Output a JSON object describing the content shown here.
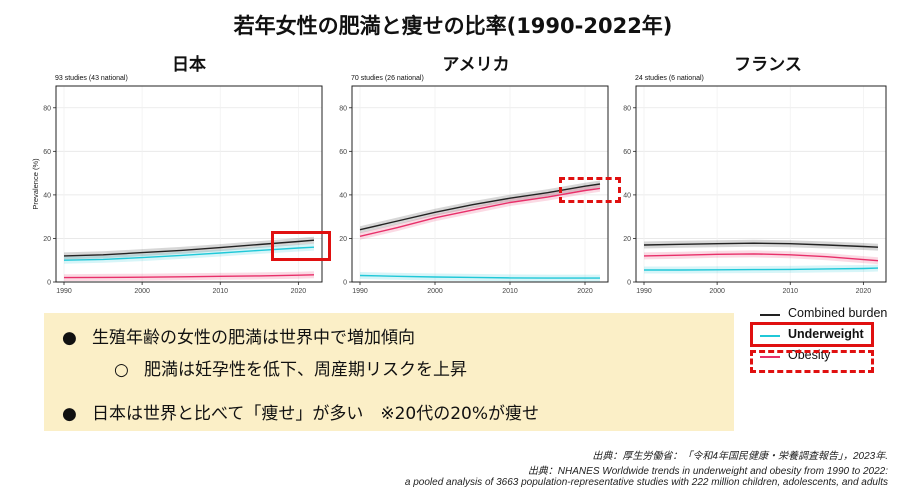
{
  "title": "若年女性の肥満と痩せの比率(1990-2022年)",
  "chart_data": [
    {
      "type": "line",
      "panel_title": "日本",
      "note": "93 studies (43 national)",
      "ylabel": "Prevalence (%)",
      "xlim": [
        1990,
        2022
      ],
      "ylim": [
        0,
        90
      ],
      "xticks": [
        "1990",
        "2000",
        "2010",
        "2020"
      ],
      "yticks": [
        "0",
        "20",
        "40",
        "60",
        "80"
      ],
      "x": [
        1990,
        1995,
        2000,
        2005,
        2010,
        2015,
        2020,
        2022
      ],
      "series": [
        {
          "name": "Combined burden",
          "values": [
            12.0,
            12.5,
            13.5,
            14.5,
            15.8,
            17.2,
            18.6,
            19.2
          ]
        },
        {
          "name": "Underweight",
          "values": [
            10.0,
            10.4,
            11.2,
            12.2,
            13.3,
            14.5,
            15.6,
            16.0
          ]
        },
        {
          "name": "Obesity",
          "values": [
            2.0,
            2.1,
            2.2,
            2.4,
            2.6,
            2.8,
            3.1,
            3.3
          ]
        }
      ]
    },
    {
      "type": "line",
      "panel_title": "アメリカ",
      "note": "70 studies (26 national)",
      "xlim": [
        1990,
        2022
      ],
      "ylim": [
        0,
        90
      ],
      "xticks": [
        "1990",
        "2000",
        "2010",
        "2020"
      ],
      "yticks": [
        "0",
        "20",
        "40",
        "60",
        "80"
      ],
      "x": [
        1990,
        1995,
        2000,
        2005,
        2010,
        2015,
        2020,
        2022
      ],
      "series": [
        {
          "name": "Combined burden",
          "values": [
            24.0,
            28.0,
            32.0,
            35.5,
            38.5,
            41.0,
            44.0,
            45.0
          ]
        },
        {
          "name": "Underweight",
          "values": [
            3.0,
            2.6,
            2.3,
            2.1,
            1.9,
            1.8,
            1.8,
            1.8
          ]
        },
        {
          "name": "Obesity",
          "values": [
            21.0,
            25.0,
            29.5,
            33.0,
            36.5,
            39.0,
            42.0,
            43.0
          ]
        }
      ]
    },
    {
      "type": "line",
      "panel_title": "フランス",
      "note": "24 studies (6 national)",
      "xlim": [
        1990,
        2022
      ],
      "ylim": [
        0,
        90
      ],
      "xticks": [
        "1990",
        "2000",
        "2010",
        "2020"
      ],
      "yticks": [
        "0",
        "20",
        "40",
        "60",
        "80"
      ],
      "x": [
        1990,
        1995,
        2000,
        2005,
        2010,
        2015,
        2020,
        2022
      ],
      "series": [
        {
          "name": "Combined burden",
          "values": [
            17.0,
            17.3,
            17.6,
            17.8,
            17.6,
            17.0,
            16.3,
            16.0
          ]
        },
        {
          "name": "Underweight",
          "values": [
            5.5,
            5.5,
            5.6,
            5.7,
            5.8,
            6.0,
            6.2,
            6.4
          ]
        },
        {
          "name": "Obesity",
          "values": [
            12.0,
            12.3,
            12.7,
            12.9,
            12.5,
            11.6,
            10.3,
            9.8
          ]
        }
      ]
    }
  ],
  "legend": [
    {
      "label": "Combined burden",
      "color": "#222222"
    },
    {
      "label": "Underweight",
      "color": "#20c8d8"
    },
    {
      "label": "Obesity",
      "color": "#e8306a"
    }
  ],
  "colors": {
    "combined": "#222222",
    "underweight": "#20c8d8",
    "obesity": "#e8306a",
    "highlight": "#e01010",
    "note_bg": "#fbefc7"
  },
  "bullets": [
    {
      "mark": "●",
      "text": "生殖年齢の女性の肥満は世界中で増加傾向"
    },
    {
      "mark": "○",
      "text": "肥満は妊孕性を低下、周産期リスクを上昇"
    },
    {
      "mark": "●",
      "text": "日本は世界と比べて「痩せ」が多い　※20代の20%が痩せ"
    }
  ],
  "sources": [
    "出典：厚生労働省：「令和4年国民健康・栄養調査報告」，2023年.",
    "出典：NHANES Worldwide trends in underweight and obesity from 1990 to 2022:",
    "a pooled analysis of 3663 population-representative studies with 222 million children, adolescents, and adults"
  ]
}
